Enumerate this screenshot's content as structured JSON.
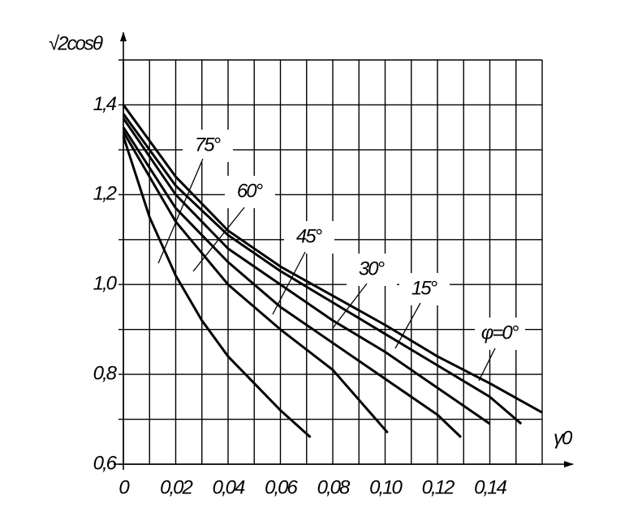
{
  "chart_data": {
    "type": "line",
    "y_label": "√2cosθ",
    "x_label": "γ0",
    "xlim": [
      0,
      0.16
    ],
    "ylim": [
      0.6,
      1.5
    ],
    "xticks": [
      {
        "value": 0,
        "label": "0"
      },
      {
        "value": 0.02,
        "label": "0,02"
      },
      {
        "value": 0.04,
        "label": "0,04"
      },
      {
        "value": 0.06,
        "label": "0,06"
      },
      {
        "value": 0.08,
        "label": "0,08"
      },
      {
        "value": 0.1,
        "label": "0,10"
      },
      {
        "value": 0.12,
        "label": "0,12"
      },
      {
        "value": 0.14,
        "label": "0,14"
      }
    ],
    "x_minor_ticks": [
      0.01,
      0.03,
      0.05,
      0.07,
      0.09,
      0.11,
      0.13,
      0.15,
      0.16
    ],
    "yticks": [
      {
        "value": 0.6,
        "label": "0,6"
      },
      {
        "value": 0.8,
        "label": "0,8"
      },
      {
        "value": 1.0,
        "label": "1,0"
      },
      {
        "value": 1.2,
        "label": "1,2"
      },
      {
        "value": 1.4,
        "label": "1,4"
      }
    ],
    "y_minor_ticks": [
      0.7,
      0.9,
      1.1,
      1.3,
      1.5
    ],
    "grid": true,
    "series": [
      {
        "name": "φ=0°",
        "color": "#000000",
        "x": [
          0,
          0.02,
          0.04,
          0.06,
          0.08,
          0.1,
          0.12,
          0.14,
          0.16
        ],
        "values": [
          1.4,
          1.24,
          1.12,
          1.04,
          0.975,
          0.91,
          0.84,
          0.78,
          0.715
        ]
      },
      {
        "name": "15°",
        "color": "#000000",
        "x": [
          0,
          0.02,
          0.04,
          0.06,
          0.08,
          0.1,
          0.12,
          0.14,
          0.152
        ],
        "values": [
          1.38,
          1.22,
          1.11,
          1.03,
          0.96,
          0.89,
          0.82,
          0.75,
          0.69
        ]
      },
      {
        "name": "30°",
        "color": "#000000",
        "x": [
          0,
          0.02,
          0.04,
          0.06,
          0.08,
          0.1,
          0.12,
          0.14
        ],
        "values": [
          1.37,
          1.2,
          1.08,
          1.0,
          0.92,
          0.85,
          0.77,
          0.69
        ]
      },
      {
        "name": "45°",
        "color": "#000000",
        "x": [
          0,
          0.02,
          0.04,
          0.06,
          0.08,
          0.1,
          0.12,
          0.129
        ],
        "values": [
          1.35,
          1.17,
          1.05,
          0.95,
          0.87,
          0.79,
          0.71,
          0.66
        ]
      },
      {
        "name": "60°",
        "color": "#000000",
        "x": [
          0,
          0.02,
          0.04,
          0.06,
          0.08,
          0.101
        ],
        "values": [
          1.34,
          1.14,
          1.0,
          0.9,
          0.81,
          0.67
        ]
      },
      {
        "name": "75°",
        "color": "#000000",
        "x": [
          0,
          0.01,
          0.02,
          0.03,
          0.04,
          0.05,
          0.06,
          0.0715
        ],
        "values": [
          1.33,
          1.15,
          1.02,
          0.92,
          0.84,
          0.78,
          0.72,
          0.66
        ]
      }
    ]
  }
}
